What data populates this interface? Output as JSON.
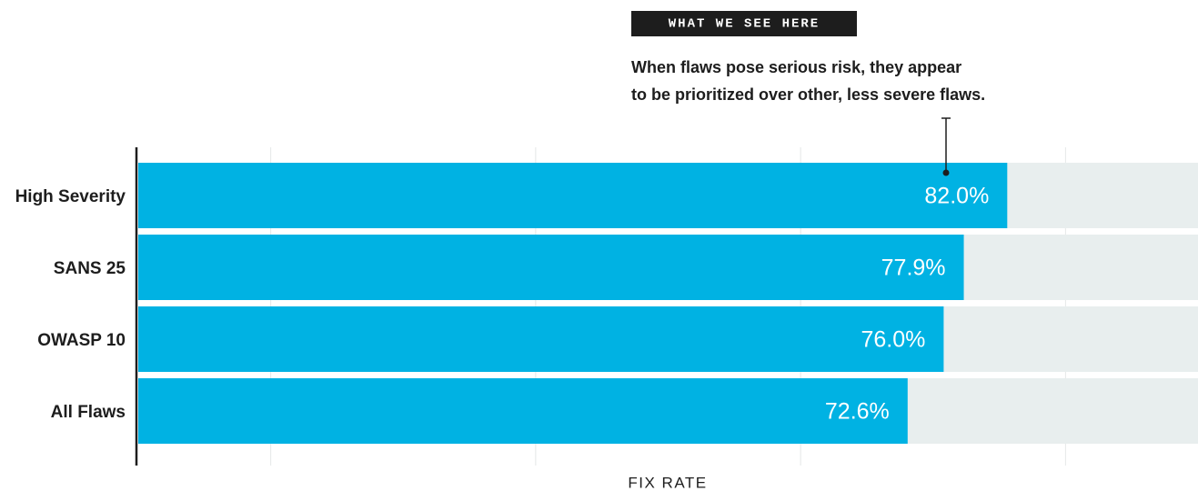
{
  "chart_data": {
    "type": "bar",
    "orientation": "horizontal",
    "categories": [
      "High Severity",
      "SANS 25",
      "OWASP 10",
      "All Flaws"
    ],
    "values": [
      82.0,
      77.9,
      76.0,
      72.6
    ],
    "value_labels": [
      "82.0%",
      "77.9%",
      "76.0%",
      "72.6%"
    ],
    "color": "#00b2e3",
    "background_color": "#e8eeee",
    "xlim": [
      0,
      100
    ],
    "xlabel": "FIX RATE",
    "grid": true,
    "annotation": {
      "tag": "WHAT WE SEE HERE",
      "lines": [
        "When flaws pose serious risk, they appear",
        "to be prioritized over other, less severe flaws."
      ]
    }
  }
}
